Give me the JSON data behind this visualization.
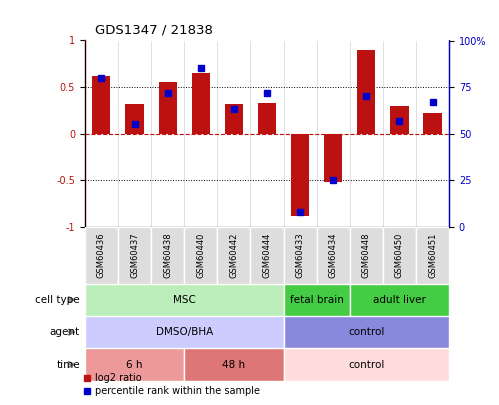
{
  "title": "GDS1347 / 21838",
  "samples": [
    "GSM60436",
    "GSM60437",
    "GSM60438",
    "GSM60440",
    "GSM60442",
    "GSM60444",
    "GSM60433",
    "GSM60434",
    "GSM60448",
    "GSM60450",
    "GSM60451"
  ],
  "log2_ratio": [
    0.62,
    0.32,
    0.55,
    0.65,
    0.32,
    0.33,
    -0.88,
    -0.52,
    0.9,
    0.3,
    0.22
  ],
  "percentile_rank": [
    80,
    55,
    72,
    85,
    63,
    72,
    8,
    25,
    70,
    57,
    67
  ],
  "bar_color": "#bb1111",
  "dot_color": "#0000cc",
  "cell_type_labels": [
    {
      "label": "MSC",
      "start": 0,
      "end": 6,
      "color": "#bbeebb"
    },
    {
      "label": "fetal brain",
      "start": 6,
      "end": 8,
      "color": "#44cc44"
    },
    {
      "label": "adult liver",
      "start": 8,
      "end": 11,
      "color": "#44cc44"
    }
  ],
  "agent_labels": [
    {
      "label": "DMSO/BHA",
      "start": 0,
      "end": 6,
      "color": "#ccccff"
    },
    {
      "label": "control",
      "start": 6,
      "end": 11,
      "color": "#8888dd"
    }
  ],
  "time_labels": [
    {
      "label": "6 h",
      "start": 0,
      "end": 3,
      "color": "#ee9999"
    },
    {
      "label": "48 h",
      "start": 3,
      "end": 6,
      "color": "#dd7777"
    },
    {
      "label": "control",
      "start": 6,
      "end": 11,
      "color": "#ffdddd"
    }
  ],
  "row_labels": [
    "cell type",
    "agent",
    "time"
  ],
  "legend_items": [
    {
      "label": "log2 ratio",
      "color": "#bb1111"
    },
    {
      "label": "percentile rank within the sample",
      "color": "#0000cc"
    }
  ]
}
